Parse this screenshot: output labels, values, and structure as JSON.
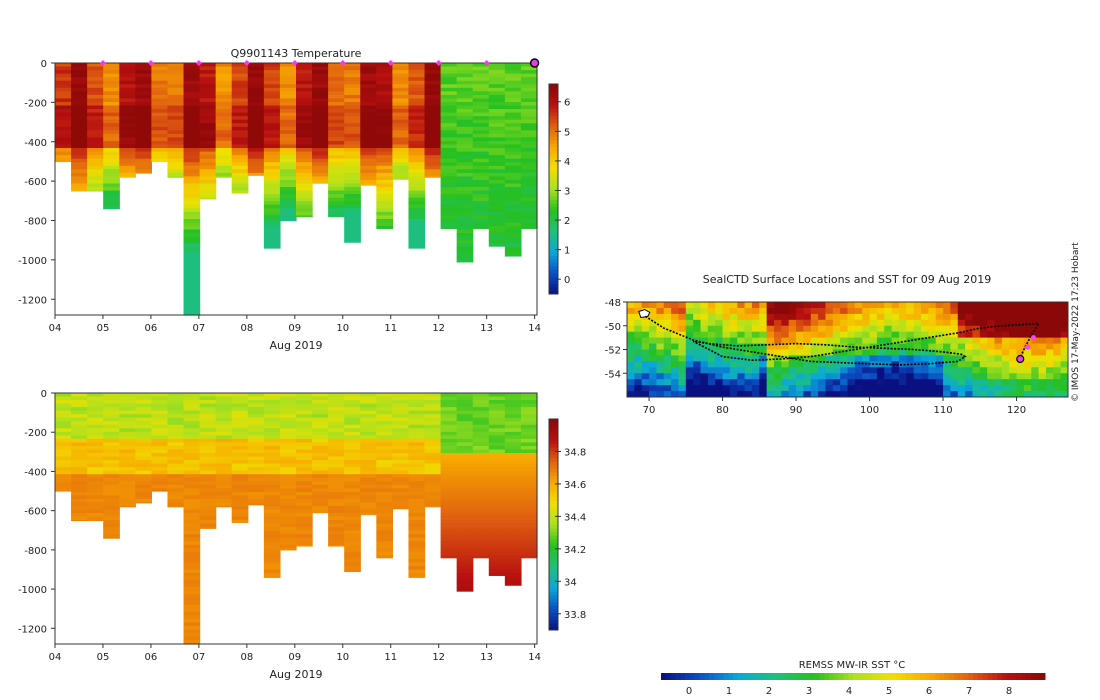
{
  "figure": {
    "watermark": "© IMOS 17-May-2022 17:23 Hobart"
  },
  "chart_data": [
    {
      "id": "temperature",
      "type": "heatmap",
      "title": "Q9901143  Temperature",
      "xlabel": "Aug 2019",
      "ylabel": "",
      "x_ticks": [
        "04",
        "05",
        "06",
        "07",
        "08",
        "09",
        "10",
        "11",
        "12",
        "13",
        "14"
      ],
      "y_ticks": [
        "0",
        "-200",
        "-400",
        "-600",
        "-800",
        "-1000",
        "-1200"
      ],
      "ylim": [
        -1280,
        0
      ],
      "xlim": [
        4,
        14.05
      ],
      "profile_depths": [
        -500,
        -650,
        -650,
        -740,
        -580,
        -560,
        -500,
        -580,
        -1280,
        -690,
        -580,
        -660,
        -570,
        -940,
        -800,
        -780,
        -610,
        -780,
        -910,
        -620,
        -840,
        -590,
        -940,
        -580,
        -840,
        -1010,
        -840,
        -930,
        -980,
        -840
      ],
      "surface_markers": [
        5,
        6,
        7,
        8,
        9,
        10,
        11,
        12,
        13
      ],
      "current_marker": 14,
      "colorbar": {
        "min": -0.5,
        "max": 6.6,
        "ticks": [
          "0",
          "1",
          "2",
          "3",
          "4",
          "5",
          "6"
        ],
        "colors": [
          "#0a1080",
          "#0b4fc4",
          "#0aa8d8",
          "#1fc07a",
          "#26c020",
          "#a8e020",
          "#f0e000",
          "#f8a800",
          "#e06010",
          "#b81010",
          "#8a0808"
        ]
      }
    },
    {
      "id": "salinity",
      "type": "heatmap",
      "title": "",
      "xlabel": "Aug 2019",
      "ylabel": "",
      "x_ticks": [
        "04",
        "05",
        "06",
        "07",
        "08",
        "09",
        "10",
        "11",
        "12",
        "13",
        "14"
      ],
      "y_ticks": [
        "0",
        "-200",
        "-400",
        "-600",
        "-800",
        "-1000",
        "-1200"
      ],
      "ylim": [
        -1280,
        0
      ],
      "xlim": [
        4,
        14.05
      ],
      "colorbar": {
        "min": 33.7,
        "max": 35.0,
        "ticks": [
          "33.8",
          "34",
          "34.2",
          "34.4",
          "34.6",
          "34.8"
        ],
        "colors": [
          "#0a1080",
          "#0b4fc4",
          "#0aa8d8",
          "#1fc07a",
          "#26c020",
          "#a8e020",
          "#f0e000",
          "#f8a800",
          "#e06010",
          "#b81010",
          "#8a0808"
        ]
      }
    },
    {
      "id": "sst_map",
      "type": "heatmap",
      "title": "SealCTD Surface Locations and SST for 09 Aug 2019",
      "x_ticks": [
        "70",
        "80",
        "90",
        "100",
        "110",
        "120"
      ],
      "y_ticks": [
        "-48",
        "-50",
        "-52",
        "-54"
      ],
      "xlim": [
        67,
        127
      ],
      "ylim": [
        -56,
        -48
      ],
      "track_lon": [
        69.5,
        72,
        76,
        80,
        84,
        88,
        92,
        96,
        100,
        104,
        108,
        112,
        113,
        112.5,
        110,
        106,
        102,
        98,
        94,
        90,
        86,
        82,
        78,
        76,
        80,
        84,
        88,
        92,
        96,
        100,
        104,
        108,
        112,
        115,
        118,
        121,
        123,
        122,
        121,
        120.5
      ],
      "track_lat": [
        -49.2,
        -50.2,
        -51.2,
        -51.8,
        -52.2,
        -52.6,
        -53.0,
        -53.1,
        -53.2,
        -53.3,
        -53.2,
        -53.0,
        -52.6,
        -52.4,
        -52.2,
        -52.0,
        -51.9,
        -51.8,
        -51.6,
        -51.5,
        -51.6,
        -51.7,
        -51.5,
        -51.3,
        -52.6,
        -52.9,
        -52.8,
        -52.6,
        -52.2,
        -51.8,
        -51.4,
        -51.0,
        -50.6,
        -50.2,
        -50.0,
        -49.9,
        -49.8,
        -50.8,
        -52.0,
        -52.7
      ],
      "highlight_lon": [
        121.5,
        122.3
      ],
      "highlight_lat": [
        -51.8,
        -51.0
      ],
      "current_lon": 120.5,
      "current_lat": -52.8,
      "colorbar": {
        "label": "REMSS MW-IR SST °C",
        "min": -0.7,
        "max": 8.9,
        "ticks": [
          "0",
          "1",
          "2",
          "3",
          "4",
          "5",
          "6",
          "7",
          "8"
        ],
        "colors": [
          "#0a1080",
          "#0b4fc4",
          "#0aa8d8",
          "#1fc07a",
          "#26c020",
          "#a8e020",
          "#f0e000",
          "#f8a800",
          "#e06010",
          "#b81010",
          "#8a0808"
        ]
      }
    }
  ]
}
